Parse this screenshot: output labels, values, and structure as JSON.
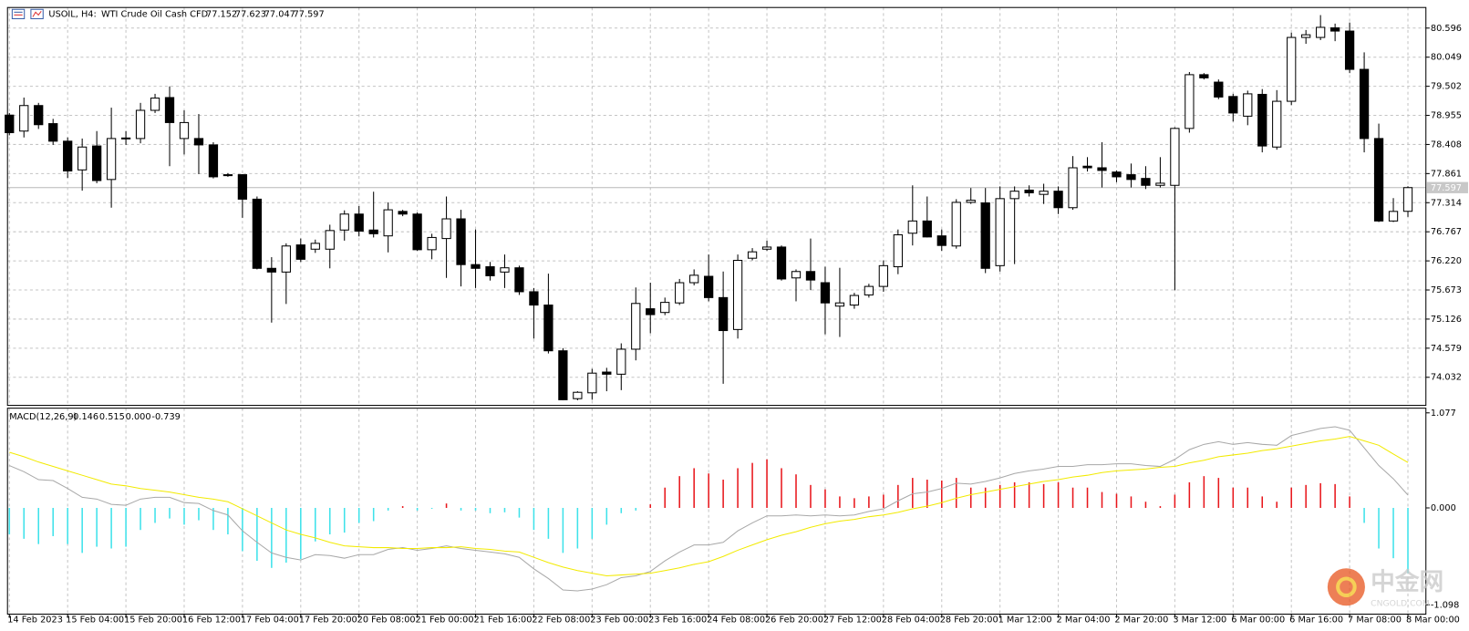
{
  "chart_data": [
    {
      "type": "candlestick",
      "title": "USOIL, H4:",
      "subtitle": "WTI Crude Oil Cash CFD",
      "categories": [
        "14 Feb 2023",
        null,
        null,
        null,
        "15 Feb 04:00",
        null,
        null,
        null,
        "15 Feb 20:00",
        null,
        null,
        null,
        "16 Feb 12:00",
        null,
        null,
        null,
        "17 Feb 04:00",
        null,
        null,
        null,
        "17 Feb 20:00",
        null,
        null,
        null,
        "20 Feb 08:00",
        null,
        null,
        null,
        "21 Feb 00:00",
        null,
        null,
        null,
        "21 Feb 16:00",
        null,
        null,
        null,
        "22 Feb 08:00",
        null,
        null,
        null,
        "23 Feb 00:00",
        null,
        null,
        null,
        "23 Feb 16:00",
        null,
        null,
        null,
        "24 Feb 08:00",
        null,
        null,
        null,
        "26 Feb 20:00",
        null,
        null,
        null,
        "27 Feb 12:00",
        null,
        null,
        null,
        "28 Feb 04:00",
        null,
        null,
        null,
        "28 Feb 20:00",
        null,
        null,
        null,
        "1 Mar 12:00",
        null,
        null,
        null,
        "2 Mar 04:00",
        null,
        null,
        null,
        "2 Mar 20:00",
        null,
        null,
        null,
        "3 Mar 12:00",
        null,
        null,
        null,
        "6 Mar 00:00",
        null,
        null,
        null,
        "6 Mar 16:00",
        null,
        null,
        null,
        "7 Mar 08:00",
        null,
        null,
        null,
        "8 Mar 00:00"
      ],
      "open": [
        78.96,
        78.66,
        79.14,
        78.8,
        78.47,
        77.93,
        78.38,
        77.75,
        78.52,
        78.52,
        79.05,
        79.29,
        78.52,
        78.52,
        78.4,
        77.83,
        77.84,
        77.38,
        76.08,
        76.01,
        76.52,
        76.44,
        76.44,
        76.8,
        77.1,
        76.8,
        76.69,
        77.15,
        77.1,
        76.43,
        76.64,
        77.01,
        76.15,
        76.11,
        76.01,
        76.09,
        75.64,
        75.39,
        74.53,
        73.63,
        73.74,
        74.13,
        74.09,
        74.56,
        75.32,
        75.25,
        75.43,
        75.81,
        75.93,
        75.53,
        74.93,
        76.27,
        76.44,
        76.48,
        75.9,
        76.02,
        75.81,
        75.37,
        75.39,
        75.58,
        75.74,
        76.11,
        76.74,
        76.97,
        76.69,
        76.5,
        77.32,
        77.31,
        76.13,
        77.39,
        77.55,
        77.47,
        77.53,
        77.22,
        78.0,
        77.97,
        77.89,
        77.84,
        77.77,
        77.64,
        77.64,
        78.71,
        79.72,
        79.58,
        79.31,
        78.94,
        79.35,
        78.36,
        79.22,
        80.42,
        80.42,
        80.6,
        80.54,
        79.82,
        78.52,
        76.97,
        77.152
      ],
      "high": [
        79.0,
        79.29,
        79.19,
        78.89,
        78.54,
        78.52,
        78.66,
        79.1,
        78.66,
        79.19,
        79.36,
        79.5,
        79.05,
        78.98,
        78.45,
        77.87,
        77.85,
        77.43,
        76.29,
        76.55,
        76.64,
        76.62,
        76.9,
        77.17,
        77.25,
        77.52,
        77.32,
        77.18,
        77.13,
        76.73,
        77.43,
        77.18,
        76.81,
        76.2,
        76.34,
        76.13,
        75.71,
        75.98,
        74.58,
        73.77,
        74.19,
        74.21,
        74.67,
        75.72,
        75.81,
        75.53,
        75.88,
        76.06,
        76.34,
        76.02,
        76.34,
        76.46,
        76.6,
        76.51,
        76.06,
        76.64,
        76.11,
        76.09,
        75.62,
        75.79,
        76.23,
        76.81,
        77.64,
        77.43,
        76.81,
        77.38,
        77.59,
        77.59,
        77.62,
        77.62,
        77.64,
        77.67,
        77.62,
        78.19,
        78.17,
        78.45,
        77.92,
        78.05,
        78.0,
        78.17,
        78.73,
        79.77,
        79.75,
        79.63,
        79.36,
        79.42,
        79.45,
        79.43,
        80.51,
        80.56,
        80.84,
        80.68,
        80.7,
        80.14,
        78.8,
        77.4,
        77.623
      ],
      "low": [
        78.58,
        78.54,
        78.7,
        78.4,
        77.78,
        77.54,
        77.68,
        77.22,
        78.4,
        78.43,
        79.0,
        78.0,
        78.22,
        77.85,
        77.77,
        77.8,
        77.03,
        76.06,
        75.06,
        75.41,
        76.2,
        76.37,
        76.08,
        76.6,
        76.68,
        76.66,
        76.38,
        77.06,
        76.41,
        76.25,
        75.9,
        75.74,
        75.71,
        75.85,
        75.71,
        75.58,
        74.76,
        74.48,
        73.6,
        73.6,
        73.61,
        73.77,
        73.79,
        74.35,
        74.86,
        75.2,
        75.39,
        75.76,
        75.46,
        73.91,
        74.76,
        76.23,
        76.41,
        75.85,
        75.46,
        75.67,
        74.84,
        74.79,
        75.32,
        75.53,
        75.64,
        75.97,
        76.51,
        76.66,
        76.41,
        76.45,
        77.29,
        75.99,
        76.02,
        76.16,
        77.43,
        77.29,
        77.1,
        77.18,
        77.9,
        77.6,
        77.7,
        77.6,
        77.57,
        77.6,
        75.67,
        78.63,
        79.63,
        79.26,
        78.84,
        78.77,
        78.26,
        78.31,
        79.15,
        80.3,
        80.37,
        80.35,
        79.75,
        78.26,
        76.95,
        76.95,
        77.047
      ],
      "close": [
        78.63,
        79.14,
        78.78,
        78.47,
        77.91,
        78.36,
        77.73,
        78.52,
        78.53,
        79.05,
        79.28,
        78.82,
        78.82,
        78.4,
        77.8,
        77.84,
        77.38,
        76.08,
        76.01,
        76.5,
        76.25,
        76.55,
        76.79,
        77.1,
        76.78,
        76.73,
        77.18,
        77.1,
        76.43,
        76.66,
        77.01,
        76.15,
        76.08,
        75.94,
        76.09,
        75.64,
        75.39,
        74.53,
        73.61,
        73.75,
        74.11,
        74.09,
        74.56,
        75.42,
        75.21,
        75.44,
        75.81,
        75.95,
        75.53,
        74.91,
        76.23,
        76.39,
        76.48,
        75.88,
        76.02,
        75.86,
        75.43,
        75.43,
        75.57,
        75.74,
        76.13,
        76.71,
        76.97,
        76.67,
        76.51,
        77.32,
        77.36,
        76.08,
        77.39,
        77.53,
        77.5,
        77.53,
        77.22,
        77.97,
        77.97,
        77.92,
        77.8,
        77.75,
        77.64,
        77.68,
        78.71,
        79.72,
        79.66,
        79.3,
        79.0,
        79.36,
        78.38,
        79.22,
        80.42,
        80.47,
        80.61,
        80.54,
        79.82,
        78.52,
        76.97,
        77.15,
        77.597
      ],
      "up_color": "#ffffff",
      "down_color": "#000000",
      "ylim": [
        73.504,
        80.983
      ],
      "yticks": [
        80.596,
        80.049,
        79.502,
        78.955,
        78.408,
        77.861,
        77.314,
        76.767,
        {
          "value": 76.22,
          "label": "76.220"
        },
        75.673,
        75.126,
        74.579,
        74.032
      ],
      "grid": true,
      "last_price_line": true
    },
    {
      "type": "macd",
      "title": "MACD(12,26,9)",
      "histogram": {
        "positive_color": "#e8161b",
        "negative_color": "#3ee2ea",
        "values": [
          -0.3,
          -0.35,
          -0.41,
          -0.32,
          -0.41,
          -0.51,
          -0.44,
          -0.46,
          -0.44,
          -0.25,
          -0.17,
          -0.12,
          -0.19,
          -0.14,
          -0.25,
          -0.3,
          -0.49,
          -0.6,
          -0.68,
          -0.62,
          -0.58,
          -0.38,
          -0.3,
          -0.28,
          -0.17,
          -0.15,
          -0.03,
          0.02,
          -0.03,
          -0.01,
          0.05,
          -0.03,
          -0.03,
          -0.06,
          -0.05,
          -0.11,
          -0.25,
          -0.35,
          -0.51,
          -0.46,
          -0.35,
          -0.19,
          -0.06,
          -0.03,
          0.04,
          0.23,
          0.36,
          0.45,
          0.39,
          0.32,
          0.45,
          0.51,
          0.55,
          0.45,
          0.38,
          0.26,
          0.21,
          0.13,
          0.11,
          0.13,
          0.15,
          0.26,
          0.34,
          0.32,
          0.31,
          0.34,
          0.23,
          0.23,
          0.26,
          0.29,
          0.29,
          0.27,
          0.29,
          0.23,
          0.23,
          0.18,
          0.16,
          0.13,
          0.07,
          0.02,
          0.15,
          0.29,
          0.36,
          0.34,
          0.23,
          0.23,
          0.13,
          0.07,
          0.23,
          0.26,
          0.28,
          0.27,
          0.13,
          -0.17,
          -0.46,
          -0.57,
          -0.739
        ]
      },
      "macd": {
        "color": "#a8a8a8",
        "values": [
          0.48,
          0.41,
          0.32,
          0.31,
          0.22,
          0.12,
          0.1,
          0.04,
          0.03,
          0.1,
          0.12,
          0.12,
          0.06,
          0.05,
          -0.03,
          -0.08,
          -0.26,
          -0.39,
          -0.51,
          -0.56,
          -0.59,
          -0.53,
          -0.54,
          -0.57,
          -0.53,
          -0.53,
          -0.47,
          -0.45,
          -0.48,
          -0.46,
          -0.43,
          -0.46,
          -0.48,
          -0.5,
          -0.52,
          -0.56,
          -0.69,
          -0.8,
          -0.93,
          -0.94,
          -0.92,
          -0.87,
          -0.79,
          -0.77,
          -0.72,
          -0.6,
          -0.5,
          -0.42,
          -0.42,
          -0.39,
          -0.26,
          -0.17,
          -0.09,
          -0.09,
          -0.08,
          -0.09,
          -0.08,
          -0.09,
          -0.08,
          -0.04,
          -0.01,
          0.08,
          0.16,
          0.18,
          0.22,
          0.28,
          0.27,
          0.3,
          0.34,
          0.39,
          0.42,
          0.44,
          0.47,
          0.47,
          0.49,
          0.49,
          0.5,
          0.5,
          0.48,
          0.47,
          0.55,
          0.66,
          0.72,
          0.75,
          0.72,
          0.74,
          0.72,
          0.71,
          0.82,
          0.86,
          0.9,
          0.92,
          0.88,
          0.68,
          0.48,
          0.33,
          0.146
        ]
      },
      "signal": {
        "color": "#f2ea00",
        "values": [
          0.63,
          0.58,
          0.52,
          0.47,
          0.42,
          0.37,
          0.32,
          0.27,
          0.25,
          0.22,
          0.2,
          0.18,
          0.15,
          0.12,
          0.1,
          0.07,
          -0.01,
          -0.09,
          -0.17,
          -0.25,
          -0.3,
          -0.34,
          -0.39,
          -0.43,
          -0.44,
          -0.45,
          -0.45,
          -0.46,
          -0.46,
          -0.45,
          -0.45,
          -0.44,
          -0.46,
          -0.47,
          -0.49,
          -0.5,
          -0.56,
          -0.62,
          -0.67,
          -0.71,
          -0.74,
          -0.77,
          -0.76,
          -0.75,
          -0.74,
          -0.71,
          -0.68,
          -0.64,
          -0.61,
          -0.55,
          -0.48,
          -0.42,
          -0.36,
          -0.31,
          -0.27,
          -0.22,
          -0.18,
          -0.15,
          -0.13,
          -0.1,
          -0.08,
          -0.05,
          -0.01,
          0.02,
          0.06,
          0.11,
          0.15,
          0.18,
          0.21,
          0.24,
          0.27,
          0.3,
          0.32,
          0.35,
          0.37,
          0.4,
          0.42,
          0.43,
          0.44,
          0.46,
          0.47,
          0.51,
          0.54,
          0.58,
          0.6,
          0.62,
          0.65,
          0.67,
          0.7,
          0.73,
          0.76,
          0.78,
          0.81,
          0.76,
          0.71,
          0.61,
          0.515
        ]
      },
      "extra_value": {
        "value": 0,
        "label": "0.000"
      },
      "ylim": [
        -1.204,
        1.13
      ],
      "yticks": [
        1.077,
        {
          "value": 0,
          "label": "0.000"
        },
        -1.098
      ]
    },
    {
      "type": "watermark",
      "text": "中金网",
      "url": "CNGOLD.COM"
    }
  ]
}
